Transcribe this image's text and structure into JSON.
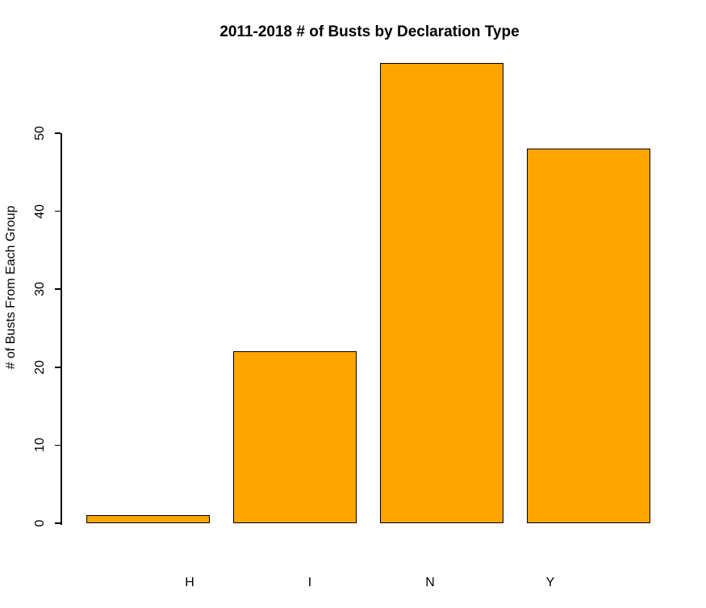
{
  "chart_data": {
    "type": "bar",
    "title": "2011-2018 # of Busts by Declaration Type",
    "xlabel": "",
    "ylabel": "# of Busts From Each Group",
    "categories": [
      "H",
      "I",
      "N",
      "Y"
    ],
    "values": [
      1,
      22,
      59,
      48
    ],
    "yticks": [
      0,
      10,
      20,
      30,
      40,
      50
    ],
    "ylim": [
      0,
      60
    ],
    "grid": false,
    "legend_position": "none",
    "bar_color": "#FFA500",
    "bar_border_color": "#000000",
    "axis_color": "#000000",
    "text_color": "#000000",
    "background_color": "#FFFFFF"
  }
}
